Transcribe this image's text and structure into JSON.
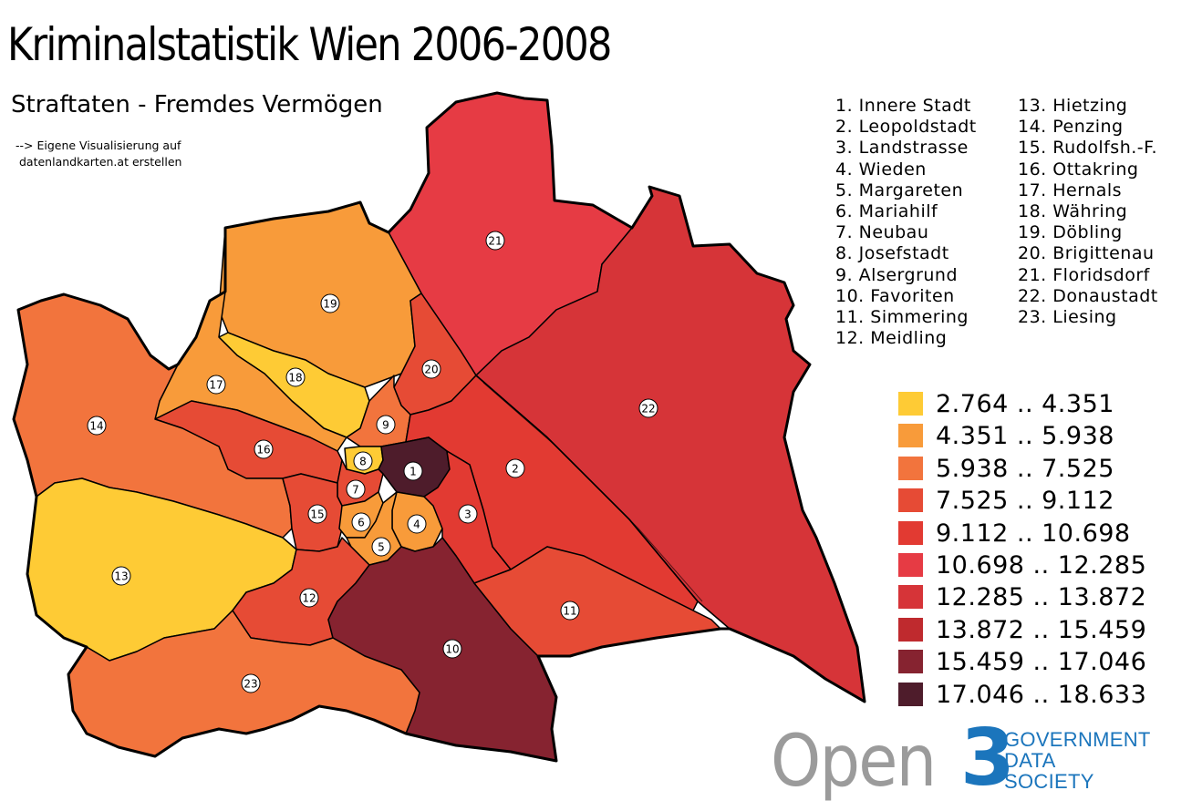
{
  "title": "Kriminalstatistik Wien 2006-2008",
  "subtitle": "Straftaten - Fremdes Vermögen",
  "note": {
    "line1": "--> Eigene Visualisierung auf",
    "line2": "datenlandkarten.at erstellen"
  },
  "legend": {
    "classes": [
      {
        "label": "2.764 .. 4.351",
        "color": "#fecb35"
      },
      {
        "label": "4.351 .. 5.938",
        "color": "#f89b3a"
      },
      {
        "label": "5.938 .. 7.525",
        "color": "#f2743d"
      },
      {
        "label": "7.525 .. 9.112",
        "color": "#e64b35"
      },
      {
        "label": "9.112 .. 10.698",
        "color": "#e23a32"
      },
      {
        "label": "10.698 .. 12.285",
        "color": "#e63b44"
      },
      {
        "label": "12.285 .. 13.872",
        "color": "#d63438"
      },
      {
        "label": "13.872 .. 15.459",
        "color": "#bf2a2e"
      },
      {
        "label": "15.459 .. 17.046",
        "color": "#862330"
      },
      {
        "label": "17.046 .. 18.633",
        "color": "#4e1c2b"
      }
    ]
  },
  "districts": [
    {
      "number": "1",
      "label": "1. Innere Stadt",
      "color": "#4e1c2b"
    },
    {
      "number": "2",
      "label": "2. Leopoldstadt",
      "color": "#e23a32"
    },
    {
      "number": "3",
      "label": "3. Landstrasse",
      "color": "#e23a32"
    },
    {
      "number": "4",
      "label": "4. Wieden",
      "color": "#f89b3a"
    },
    {
      "number": "5",
      "label": "5. Margareten",
      "color": "#f89b3a"
    },
    {
      "number": "6",
      "label": "6. Mariahilf",
      "color": "#f89b3a"
    },
    {
      "number": "7",
      "label": "7. Neubau",
      "color": "#e64b35"
    },
    {
      "number": "8",
      "label": "8. Josefstadt",
      "color": "#fecb35"
    },
    {
      "number": "9",
      "label": "9. Alsergrund",
      "color": "#f2743d"
    },
    {
      "number": "10",
      "label": "10. Favoriten",
      "color": "#862330"
    },
    {
      "number": "11",
      "label": "11. Simmering",
      "color": "#e64b35"
    },
    {
      "number": "12",
      "label": "12. Meidling",
      "color": "#e64b35"
    },
    {
      "number": "13",
      "label": "13. Hietzing",
      "color": "#fecb35"
    },
    {
      "number": "14",
      "label": "14. Penzing",
      "color": "#f2743d"
    },
    {
      "number": "15",
      "label": "15. Rudolfsh.-F.",
      "color": "#e64b35"
    },
    {
      "number": "16",
      "label": "16. Ottakring",
      "color": "#e64b35"
    },
    {
      "number": "17",
      "label": "17. Hernals",
      "color": "#f89b3a"
    },
    {
      "number": "18",
      "label": "18. Währing",
      "color": "#fecb35"
    },
    {
      "number": "19",
      "label": "19. Döbling",
      "color": "#f89b3a"
    },
    {
      "number": "20",
      "label": "20. Brigittenau",
      "color": "#e64b35"
    },
    {
      "number": "21",
      "label": "21. Floridsdorf",
      "color": "#e63b44"
    },
    {
      "number": "22",
      "label": "22. Donaustadt",
      "color": "#d63438"
    },
    {
      "number": "23",
      "label": "23. Liesing",
      "color": "#f2743d"
    }
  ],
  "logo": {
    "open": "Open",
    "three": "3",
    "org_line1": "GOVERNMENT",
    "org_line2": "DATA",
    "org_line3": "SOCIETY",
    "gray": "#9b9b9b",
    "blue": "#1b75bc"
  }
}
